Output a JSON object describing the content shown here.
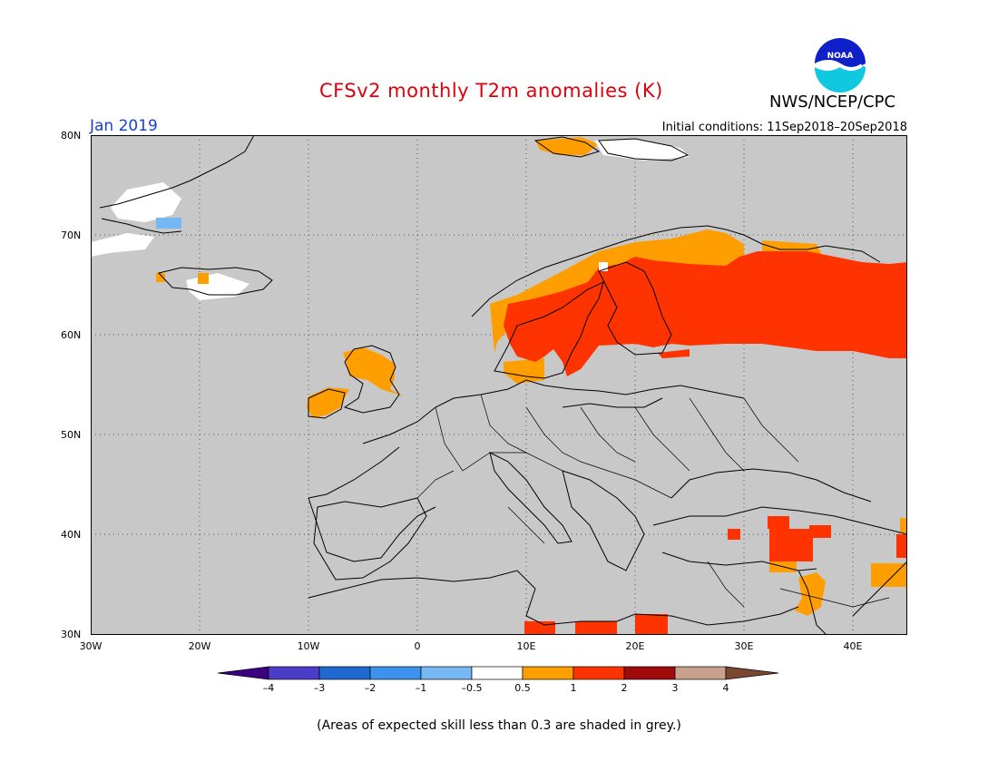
{
  "header": {
    "title": "CFSv2 monthly T2m anomalies (K)",
    "agency": "NWS/NCEP/CPC",
    "logo_text": "NOAA",
    "period": "Jan 2019",
    "initial_conditions": "Initial conditions: 11Sep2018–20Sep2018"
  },
  "map": {
    "lon_range": [
      -30,
      45
    ],
    "lat_range": [
      30,
      80
    ],
    "lon_ticks": [
      "30W",
      "20W",
      "10W",
      "0",
      "10E",
      "20E",
      "30E",
      "40E"
    ],
    "lat_ticks": [
      "80N",
      "70N",
      "60N",
      "50N",
      "40N",
      "30N"
    ],
    "background_color": "#c8c8c8",
    "grid": "dotted"
  },
  "legend": {
    "labels": [
      "–4",
      "–3",
      "–2",
      "–1",
      "–0.5",
      "0.5",
      "1",
      "2",
      "3",
      "4"
    ],
    "colors": [
      "#3b007f",
      "#4c3dc8",
      "#1e6ad0",
      "#3c92ec",
      "#76b8f4",
      "#ffffff",
      "#ff9e00",
      "#ff3300",
      "#a00a0a",
      "#c8a08c",
      "#7a4830"
    ]
  },
  "footnote": "(Areas of expected skill less than 0.3 are shaded in grey.)",
  "anomaly_regions": [
    {
      "name": "Scandinavia & NW Russia warm anomaly",
      "category": "1 to 2"
    },
    {
      "name": "Southern Scandinavia / Baltic fringe",
      "category": "0.5 to 1"
    },
    {
      "name": "British Isles",
      "category": "0.5 to 1"
    },
    {
      "name": "Svalbard",
      "category": "0.5 to 1"
    },
    {
      "name": "Turkey / Levant",
      "category": "0.5 to 2"
    },
    {
      "name": "Libya coast",
      "category": "1 to 2"
    },
    {
      "name": "Greenland / Iceland",
      "category": "-0.5 to 0.5"
    }
  ]
}
